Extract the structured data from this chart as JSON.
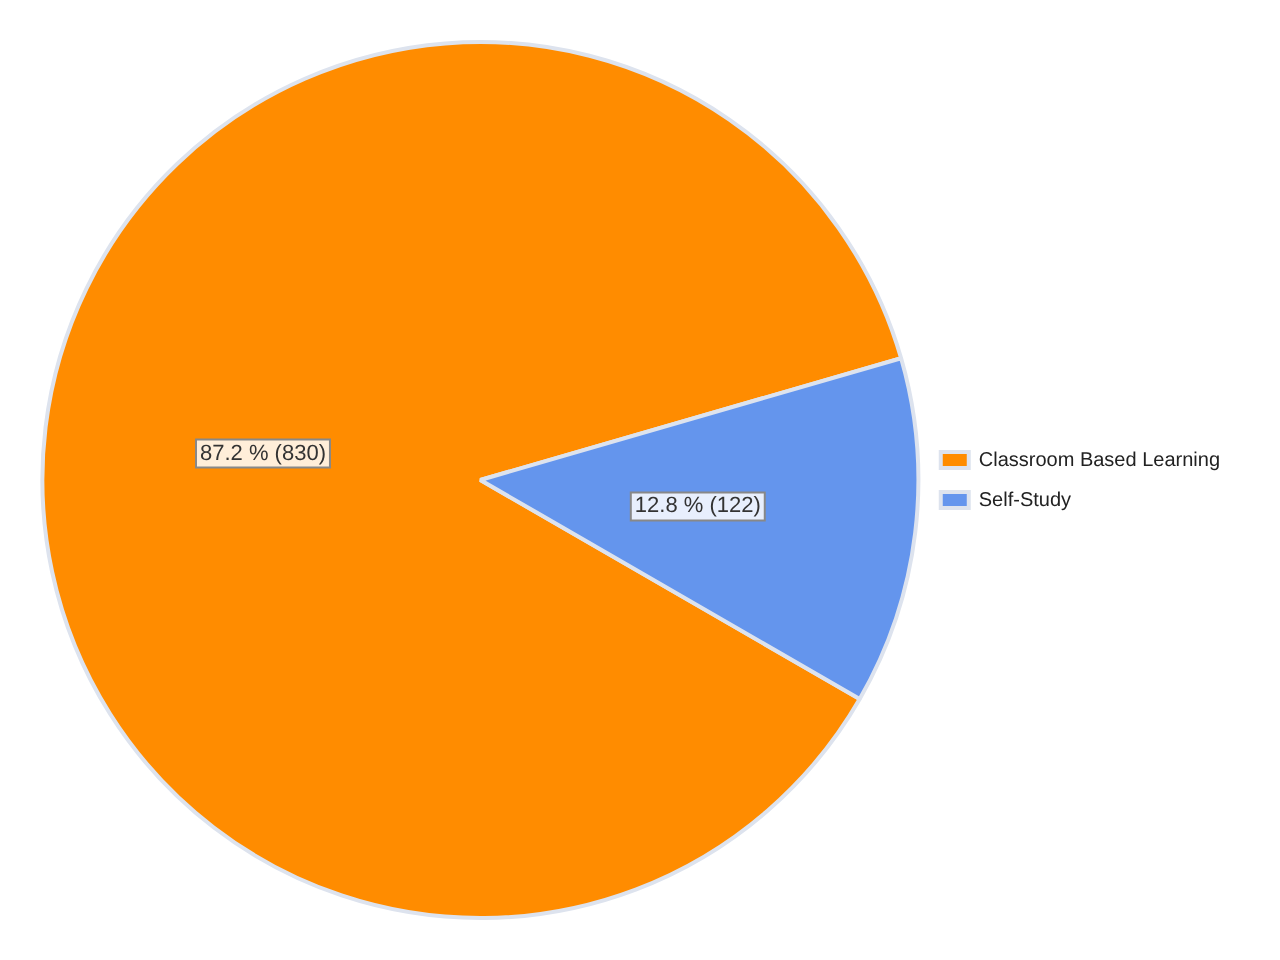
{
  "chart_data": {
    "type": "pie",
    "categories": [
      "Classroom Based Learning",
      "Self-Study"
    ],
    "values": [
      830,
      122
    ],
    "colors": [
      "#ff8c00",
      "#6495ed"
    ],
    "value_labels": [
      "87.2 % (830)",
      "12.8 % (122)"
    ],
    "legend": "right"
  }
}
